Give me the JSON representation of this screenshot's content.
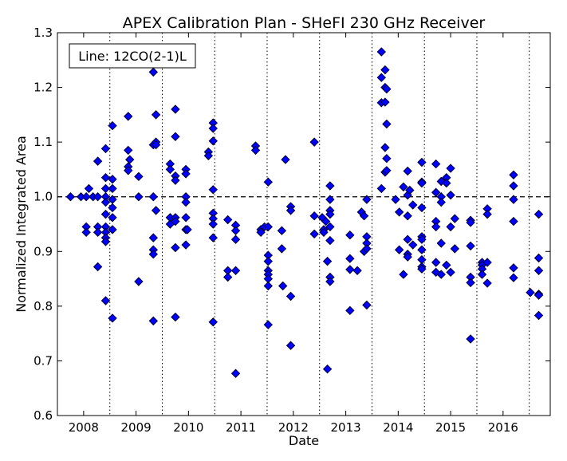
{
  "chart_data": {
    "type": "scatter",
    "title": "APEX Calibration Plan - SHeFI 230 GHz Receiver",
    "xlabel": "Date",
    "ylabel": "Normalized Integrated Area",
    "annotation": "Line: 12CO(2-1)L",
    "legend_position": "top-left",
    "xlim": [
      2007.5,
      2016.9
    ],
    "ylim": [
      0.6,
      1.3
    ],
    "x_ticks": [
      2008,
      2009,
      2010,
      2011,
      2012,
      2013,
      2014,
      2015,
      2016
    ],
    "y_ticks": [
      0.6,
      0.7,
      0.8,
      0.9,
      1.0,
      1.1,
      1.2,
      1.3
    ],
    "y_tick_labels": [
      "0.6",
      "0.7",
      "0.8",
      "0.9",
      "1.0",
      "1.1",
      "1.2",
      "1.3"
    ],
    "reference_line": 1.0,
    "vertical_separators": [
      2008.5,
      2009.5,
      2010.5,
      2011.5,
      2012.5,
      2013.5,
      2014.5,
      2015.5,
      2016.5
    ],
    "marker_color": "#0000ff",
    "marker_edge": "#000033",
    "points": [
      [
        2007.75,
        1.0
      ],
      [
        2007.95,
        1.0
      ],
      [
        2008.05,
        1.0
      ],
      [
        2008.1,
        1.015
      ],
      [
        2008.05,
        0.945
      ],
      [
        2008.05,
        0.935
      ],
      [
        2008.18,
        1.0
      ],
      [
        2008.27,
        1.065
      ],
      [
        2008.27,
        1.0
      ],
      [
        2008.27,
        0.945
      ],
      [
        2008.27,
        0.935
      ],
      [
        2008.27,
        0.872
      ],
      [
        2008.42,
        1.088
      ],
      [
        2008.42,
        1.035
      ],
      [
        2008.42,
        1.015
      ],
      [
        2008.42,
        1.0
      ],
      [
        2008.42,
        0.99
      ],
      [
        2008.42,
        0.968
      ],
      [
        2008.42,
        0.945
      ],
      [
        2008.42,
        0.935
      ],
      [
        2008.42,
        0.925
      ],
      [
        2008.42,
        0.918
      ],
      [
        2008.42,
        0.81
      ],
      [
        2008.55,
        1.13
      ],
      [
        2008.55,
        1.032
      ],
      [
        2008.55,
        1.015
      ],
      [
        2008.55,
        0.995
      ],
      [
        2008.55,
        0.98
      ],
      [
        2008.55,
        0.962
      ],
      [
        2008.55,
        0.94
      ],
      [
        2008.55,
        0.778
      ],
      [
        2008.85,
        1.147
      ],
      [
        2008.85,
        1.085
      ],
      [
        2008.85,
        1.055
      ],
      [
        2008.85,
        1.048
      ],
      [
        2008.88,
        1.068
      ],
      [
        2009.05,
        1.037
      ],
      [
        2009.05,
        1.0
      ],
      [
        2009.05,
        0.845
      ],
      [
        2009.33,
        1.228
      ],
      [
        2009.33,
        1.095
      ],
      [
        2009.33,
        1.0
      ],
      [
        2009.33,
        0.925
      ],
      [
        2009.33,
        0.903
      ],
      [
        2009.33,
        0.895
      ],
      [
        2009.33,
        0.773
      ],
      [
        2009.38,
        1.15
      ],
      [
        2009.38,
        1.1
      ],
      [
        2009.38,
        1.095
      ],
      [
        2009.38,
        0.975
      ],
      [
        2009.65,
        1.06
      ],
      [
        2009.65,
        1.05
      ],
      [
        2009.65,
        0.962
      ],
      [
        2009.65,
        0.95
      ],
      [
        2009.75,
        1.16
      ],
      [
        2009.75,
        1.11
      ],
      [
        2009.75,
        1.038
      ],
      [
        2009.75,
        1.03
      ],
      [
        2009.75,
        0.962
      ],
      [
        2009.75,
        0.955
      ],
      [
        2009.75,
        0.907
      ],
      [
        2009.75,
        0.78
      ],
      [
        2009.95,
        1.05
      ],
      [
        2009.95,
        1.042
      ],
      [
        2009.95,
        1.0
      ],
      [
        2009.95,
        0.99
      ],
      [
        2009.95,
        0.962
      ],
      [
        2009.95,
        0.94
      ],
      [
        2009.95,
        0.912
      ],
      [
        2009.98,
        0.94
      ],
      [
        2010.38,
        1.082
      ],
      [
        2010.38,
        1.075
      ],
      [
        2010.47,
        1.135
      ],
      [
        2010.47,
        1.125
      ],
      [
        2010.47,
        1.102
      ],
      [
        2010.47,
        1.013
      ],
      [
        2010.47,
        0.97
      ],
      [
        2010.47,
        0.96
      ],
      [
        2010.47,
        0.95
      ],
      [
        2010.47,
        0.925
      ],
      [
        2010.47,
        0.771
      ],
      [
        2010.75,
        0.958
      ],
      [
        2010.75,
        0.865
      ],
      [
        2010.75,
        0.853
      ],
      [
        2010.9,
        0.948
      ],
      [
        2010.9,
        0.938
      ],
      [
        2010.9,
        0.922
      ],
      [
        2010.9,
        0.865
      ],
      [
        2010.9,
        0.677
      ],
      [
        2011.28,
        1.093
      ],
      [
        2011.28,
        1.085
      ],
      [
        2011.38,
        0.94
      ],
      [
        2011.38,
        0.935
      ],
      [
        2011.45,
        0.945
      ],
      [
        2011.52,
        1.027
      ],
      [
        2011.52,
        0.945
      ],
      [
        2011.52,
        0.893
      ],
      [
        2011.52,
        0.882
      ],
      [
        2011.52,
        0.865
      ],
      [
        2011.52,
        0.858
      ],
      [
        2011.52,
        0.85
      ],
      [
        2011.52,
        0.837
      ],
      [
        2011.52,
        0.766
      ],
      [
        2011.78,
        0.938
      ],
      [
        2011.78,
        0.905
      ],
      [
        2011.8,
        0.837
      ],
      [
        2011.85,
        1.068
      ],
      [
        2011.95,
        0.982
      ],
      [
        2011.95,
        0.975
      ],
      [
        2011.95,
        0.818
      ],
      [
        2011.95,
        0.728
      ],
      [
        2012.4,
        1.1
      ],
      [
        2012.4,
        0.965
      ],
      [
        2012.4,
        0.932
      ],
      [
        2012.55,
        0.962
      ],
      [
        2012.58,
        0.94
      ],
      [
        2012.58,
        0.935
      ],
      [
        2012.62,
        0.955
      ],
      [
        2012.65,
        0.882
      ],
      [
        2012.65,
        0.685
      ],
      [
        2012.7,
        1.02
      ],
      [
        2012.7,
        0.995
      ],
      [
        2012.7,
        0.975
      ],
      [
        2012.7,
        0.968
      ],
      [
        2012.7,
        0.945
      ],
      [
        2012.7,
        0.92
      ],
      [
        2012.7,
        0.853
      ],
      [
        2012.7,
        0.845
      ],
      [
        2013.08,
        0.93
      ],
      [
        2013.08,
        0.887
      ],
      [
        2013.08,
        0.867
      ],
      [
        2013.08,
        0.792
      ],
      [
        2013.22,
        0.865
      ],
      [
        2013.3,
        0.972
      ],
      [
        2013.35,
        0.965
      ],
      [
        2013.35,
        0.9
      ],
      [
        2013.4,
        0.995
      ],
      [
        2013.4,
        0.927
      ],
      [
        2013.4,
        0.915
      ],
      [
        2013.4,
        0.905
      ],
      [
        2013.4,
        0.802
      ],
      [
        2013.68,
        1.265
      ],
      [
        2013.68,
        1.218
      ],
      [
        2013.68,
        1.172
      ],
      [
        2013.68,
        1.015
      ],
      [
        2013.75,
        1.232
      ],
      [
        2013.75,
        1.2
      ],
      [
        2013.75,
        1.173
      ],
      [
        2013.75,
        1.09
      ],
      [
        2013.75,
        1.045
      ],
      [
        2013.78,
        1.197
      ],
      [
        2013.78,
        1.133
      ],
      [
        2013.78,
        1.07
      ],
      [
        2013.78,
        1.048
      ],
      [
        2013.95,
        0.995
      ],
      [
        2014.02,
        0.972
      ],
      [
        2014.02,
        0.903
      ],
      [
        2014.1,
        1.018
      ],
      [
        2014.1,
        0.858
      ],
      [
        2014.18,
        1.047
      ],
      [
        2014.18,
        1.003
      ],
      [
        2014.18,
        0.965
      ],
      [
        2014.18,
        0.922
      ],
      [
        2014.18,
        0.895
      ],
      [
        2014.18,
        0.89
      ],
      [
        2014.22,
        1.012
      ],
      [
        2014.28,
        0.912
      ],
      [
        2014.28,
        0.985
      ],
      [
        2014.45,
        1.063
      ],
      [
        2014.45,
        1.027
      ],
      [
        2014.45,
        1.025
      ],
      [
        2014.45,
        0.98
      ],
      [
        2014.45,
        0.927
      ],
      [
        2014.45,
        0.922
      ],
      [
        2014.45,
        0.903
      ],
      [
        2014.45,
        0.885
      ],
      [
        2014.45,
        0.872
      ],
      [
        2014.45,
        0.868
      ],
      [
        2014.72,
        1.06
      ],
      [
        2014.72,
        1.008
      ],
      [
        2014.72,
        0.955
      ],
      [
        2014.72,
        0.945
      ],
      [
        2014.72,
        0.88
      ],
      [
        2014.72,
        0.862
      ],
      [
        2014.82,
        1.028
      ],
      [
        2014.82,
        1.0
      ],
      [
        2014.82,
        0.99
      ],
      [
        2014.82,
        0.915
      ],
      [
        2014.82,
        0.858
      ],
      [
        2014.92,
        1.035
      ],
      [
        2014.92,
        1.025
      ],
      [
        2014.92,
        0.875
      ],
      [
        2015.0,
        1.052
      ],
      [
        2015.0,
        1.003
      ],
      [
        2015.0,
        0.945
      ],
      [
        2015.0,
        0.862
      ],
      [
        2015.08,
        0.96
      ],
      [
        2015.08,
        0.905
      ],
      [
        2015.38,
        0.957
      ],
      [
        2015.38,
        0.953
      ],
      [
        2015.38,
        0.91
      ],
      [
        2015.38,
        0.853
      ],
      [
        2015.38,
        0.843
      ],
      [
        2015.38,
        0.74
      ],
      [
        2015.6,
        0.88
      ],
      [
        2015.6,
        0.875
      ],
      [
        2015.6,
        0.868
      ],
      [
        2015.6,
        0.858
      ],
      [
        2015.7,
        0.978
      ],
      [
        2015.7,
        0.968
      ],
      [
        2015.7,
        0.88
      ],
      [
        2015.7,
        0.842
      ],
      [
        2016.2,
        1.04
      ],
      [
        2016.2,
        1.02
      ],
      [
        2016.2,
        0.995
      ],
      [
        2016.2,
        0.955
      ],
      [
        2016.2,
        0.87
      ],
      [
        2016.2,
        0.852
      ],
      [
        2016.52,
        0.825
      ],
      [
        2016.68,
        0.968
      ],
      [
        2016.68,
        0.888
      ],
      [
        2016.68,
        0.865
      ],
      [
        2016.68,
        0.822
      ],
      [
        2016.68,
        0.82
      ],
      [
        2016.68,
        0.783
      ]
    ]
  }
}
